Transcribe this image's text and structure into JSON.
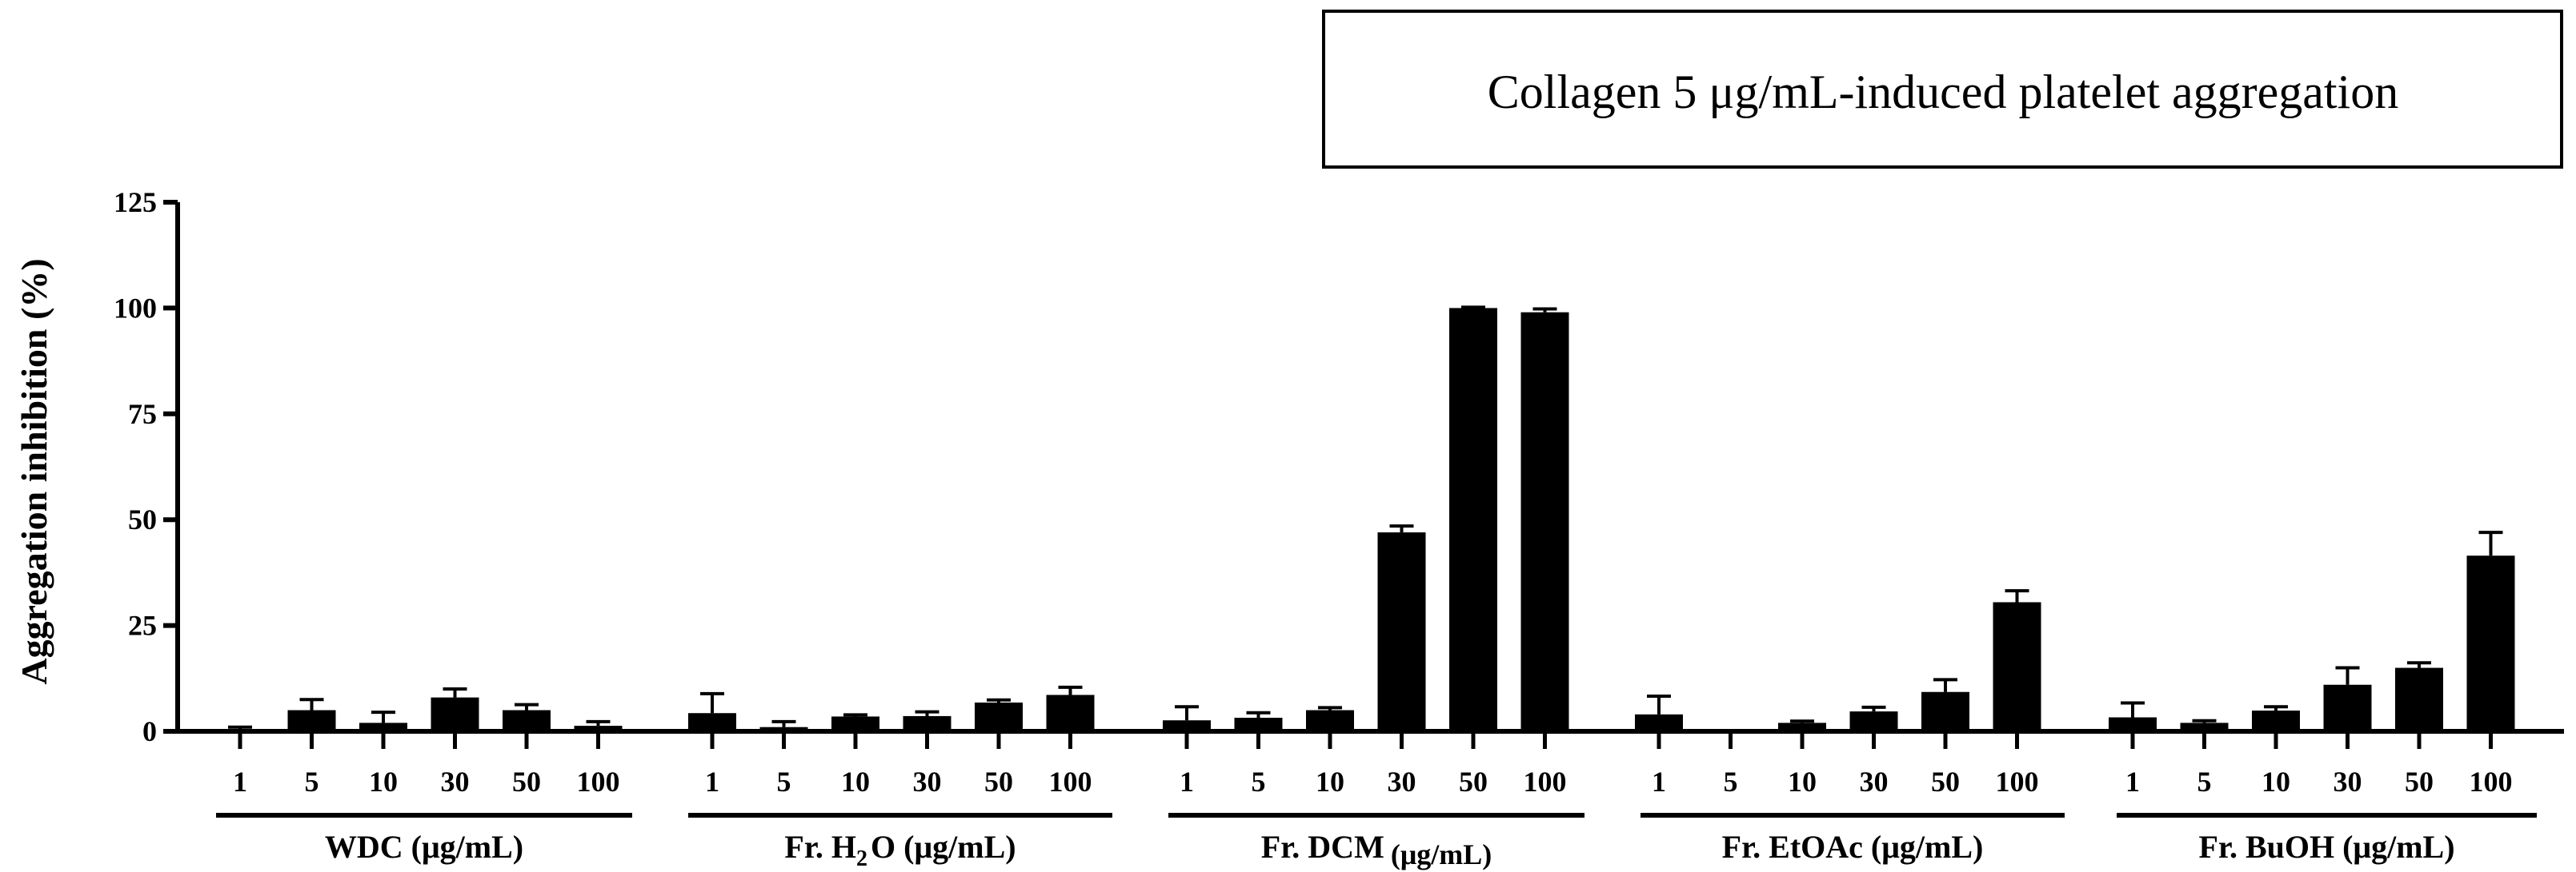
{
  "chart_data": {
    "type": "bar",
    "title": "Collagen 5 μg/mL-induced platelet aggregation",
    "xlabel": "",
    "ylabel": "Aggregation inhibition (%)",
    "ylim": [
      0,
      125
    ],
    "yticks": [
      "0",
      "25",
      "50",
      "75",
      "100",
      "125"
    ],
    "grid": false,
    "error_bars": true,
    "groups": [
      {
        "name": "WDC (μg/mL)",
        "label_main": "WDC (μg/mL)",
        "label_sub": "",
        "label_tail": "",
        "categories": [
          "1",
          "5",
          "10",
          "30",
          "50",
          "100"
        ],
        "values": [
          0.3,
          5.0,
          2.0,
          8.0,
          5.0,
          1.3
        ],
        "errors": [
          0.7,
          2.5,
          2.5,
          2.0,
          1.3,
          1.0
        ]
      },
      {
        "name": "Fr. H2O (μg/mL)",
        "label_main": "Fr. H",
        "label_sub": "2",
        "label_tail": "O (μg/mL)",
        "categories": [
          "1",
          "5",
          "10",
          "30",
          "50",
          "100"
        ],
        "values": [
          4.3,
          1.0,
          3.5,
          3.6,
          6.8,
          8.6
        ],
        "errors": [
          4.6,
          1.3,
          0.4,
          1.0,
          0.6,
          1.8
        ]
      },
      {
        "name": "Fr. DCM (μg/mL)",
        "label_main": "Fr. DCM",
        "label_sub": "",
        "label_tail": "(μg/mL)",
        "categories": [
          "1",
          "5",
          "10",
          "30",
          "50",
          "100"
        ],
        "values": [
          2.6,
          3.2,
          5.0,
          47.0,
          100.0,
          99.0
        ],
        "errors": [
          3.2,
          1.2,
          0.6,
          1.5,
          0.2,
          0.8
        ]
      },
      {
        "name": "Fr. EtOAc (μg/mL)",
        "label_main": "Fr. EtOAc (μg/mL)",
        "label_sub": "",
        "label_tail": "",
        "categories": [
          "1",
          "5",
          "10",
          "30",
          "50",
          "100"
        ],
        "values": [
          4.0,
          0.0,
          2.0,
          4.7,
          9.3,
          30.5
        ],
        "errors": [
          4.3,
          0.0,
          0.4,
          1.0,
          2.9,
          2.7
        ]
      },
      {
        "name": "Fr. BuOH (μg/mL)",
        "label_main": "Fr. BuOH (μg/mL)",
        "label_sub": "",
        "label_tail": "",
        "categories": [
          "1",
          "5",
          "10",
          "30",
          "50",
          "100"
        ],
        "values": [
          3.3,
          2.0,
          4.9,
          11.0,
          15.0,
          41.5
        ],
        "errors": [
          3.4,
          0.5,
          0.9,
          4.0,
          1.2,
          5.5
        ]
      }
    ]
  }
}
